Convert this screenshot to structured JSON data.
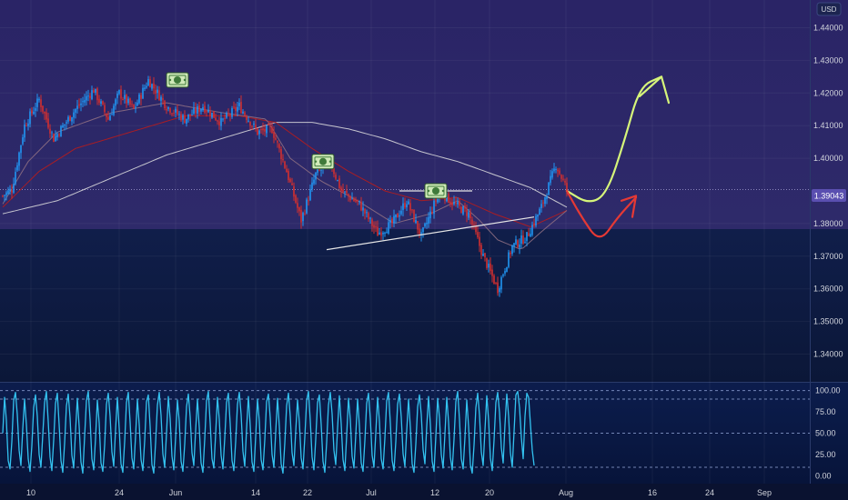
{
  "app": {
    "currency_label": "USD"
  },
  "last_price": {
    "value": 1.39043,
    "label": "1.39043"
  },
  "colors": {
    "upper_band": "#2c2763",
    "lower_band": "#0f1d47",
    "osc_band": "#0a1a44",
    "candle_up": "#2196f3",
    "candle_down": "#d32f2f",
    "ma_fast": "#8d6e82",
    "ma_mid": "#b71c1c",
    "ma_slow": "#e0e0e0",
    "oscillator": "#33c2f0",
    "forecast_up": "#d6f57a",
    "forecast_down": "#e53935",
    "trendline": "#e6e6e6",
    "axis_text": "#d1d4dc",
    "price_tag": "#5a4fb0"
  },
  "icons": [
    "dollar-bill-icon",
    "dollar-bill-icon",
    "dollar-bill-icon"
  ],
  "chart_data": [
    {
      "type": "candlestick",
      "title": "",
      "ylabel": "USD",
      "ylim": [
        1.3315,
        1.4485
      ],
      "x_ticks": [
        "10",
        "24",
        "Jun",
        "14",
        "22",
        "Jul",
        "12",
        "20",
        "Aug",
        "16",
        "24",
        "Sep"
      ],
      "y_ticks": [
        "1.44000",
        "1.43000",
        "1.42000",
        "1.41000",
        "1.40000",
        "1.38000",
        "1.37000",
        "1.36000",
        "1.35000",
        "1.34000"
      ],
      "grid": true,
      "price_segments": [
        {
          "bar": 0,
          "price": 1.3885
        },
        {
          "bar": 5,
          "price": 1.3905
        },
        {
          "bar": 12,
          "price": 1.41
        },
        {
          "bar": 20,
          "price": 1.418
        },
        {
          "bar": 28,
          "price": 1.406
        },
        {
          "bar": 40,
          "price": 1.415
        },
        {
          "bar": 50,
          "price": 1.421
        },
        {
          "bar": 58,
          "price": 1.412
        },
        {
          "bar": 64,
          "price": 1.42
        },
        {
          "bar": 72,
          "price": 1.415
        },
        {
          "bar": 80,
          "price": 1.424
        },
        {
          "bar": 90,
          "price": 1.416
        },
        {
          "bar": 100,
          "price": 1.412
        },
        {
          "bar": 110,
          "price": 1.416
        },
        {
          "bar": 120,
          "price": 1.411
        },
        {
          "bar": 130,
          "price": 1.416
        },
        {
          "bar": 140,
          "price": 1.408
        },
        {
          "bar": 148,
          "price": 1.409
        },
        {
          "bar": 156,
          "price": 1.396
        },
        {
          "bar": 164,
          "price": 1.381
        },
        {
          "bar": 172,
          "price": 1.395
        },
        {
          "bar": 180,
          "price": 1.399
        },
        {
          "bar": 186,
          "price": 1.39
        },
        {
          "bar": 196,
          "price": 1.386
        },
        {
          "bar": 206,
          "price": 1.377
        },
        {
          "bar": 214,
          "price": 1.38
        },
        {
          "bar": 222,
          "price": 1.387
        },
        {
          "bar": 230,
          "price": 1.376
        },
        {
          "bar": 240,
          "price": 1.39
        },
        {
          "bar": 248,
          "price": 1.386
        },
        {
          "bar": 256,
          "price": 1.383
        },
        {
          "bar": 264,
          "price": 1.37
        },
        {
          "bar": 272,
          "price": 1.36
        },
        {
          "bar": 280,
          "price": 1.373
        },
        {
          "bar": 288,
          "price": 1.376
        },
        {
          "bar": 296,
          "price": 1.385
        },
        {
          "bar": 304,
          "price": 1.398
        },
        {
          "bar": 310,
          "price": 1.3904
        }
      ],
      "ma_fast_anchors": [
        [
          0,
          1.386
        ],
        [
          14,
          1.399
        ],
        [
          30,
          1.408
        ],
        [
          60,
          1.414
        ],
        [
          90,
          1.417
        ],
        [
          120,
          1.414
        ],
        [
          145,
          1.412
        ],
        [
          158,
          1.4
        ],
        [
          175,
          1.393
        ],
        [
          195,
          1.387
        ],
        [
          215,
          1.38
        ],
        [
          235,
          1.383
        ],
        [
          250,
          1.387
        ],
        [
          262,
          1.381
        ],
        [
          272,
          1.375
        ],
        [
          285,
          1.372
        ],
        [
          295,
          1.377
        ],
        [
          310,
          1.384
        ]
      ],
      "ma_mid_anchors": [
        [
          0,
          1.385
        ],
        [
          20,
          1.396
        ],
        [
          40,
          1.403
        ],
        [
          70,
          1.408
        ],
        [
          100,
          1.413
        ],
        [
          130,
          1.413
        ],
        [
          150,
          1.411
        ],
        [
          170,
          1.403
        ],
        [
          190,
          1.396
        ],
        [
          210,
          1.39
        ],
        [
          230,
          1.387
        ],
        [
          250,
          1.388
        ],
        [
          270,
          1.383
        ],
        [
          290,
          1.379
        ],
        [
          310,
          1.384
        ]
      ],
      "ma_slow_anchors": [
        [
          0,
          1.383
        ],
        [
          30,
          1.387
        ],
        [
          60,
          1.394
        ],
        [
          90,
          1.401
        ],
        [
          120,
          1.406
        ],
        [
          150,
          1.411
        ],
        [
          170,
          1.411
        ],
        [
          190,
          1.409
        ],
        [
          210,
          1.406
        ],
        [
          230,
          1.402
        ],
        [
          250,
          1.399
        ],
        [
          270,
          1.395
        ],
        [
          290,
          1.391
        ],
        [
          310,
          1.385
        ]
      ],
      "trendlines": [
        {
          "from": [
            178,
            1.372
          ],
          "to": [
            292,
            1.382
          ],
          "role": "ascending support"
        },
        {
          "from": [
            218,
            1.39
          ],
          "to": [
            258,
            1.39
          ],
          "role": "horizontal resistance"
        }
      ],
      "forecast_up": [
        [
          310,
          1.39
        ],
        [
          322,
          1.386
        ],
        [
          332,
          1.389
        ],
        [
          342,
          1.406
        ],
        [
          350,
          1.422
        ],
        [
          362,
          1.425
        ]
      ],
      "forecast_up_arrowhead": [
        [
          350,
          1.419
        ],
        [
          362,
          1.425
        ],
        [
          366,
          1.417
        ]
      ],
      "forecast_down": [
        [
          310,
          1.39
        ],
        [
          318,
          1.382
        ],
        [
          328,
          1.374
        ],
        [
          338,
          1.382
        ],
        [
          348,
          1.388
        ]
      ],
      "forecast_down_arrowhead": [
        [
          340,
          1.387
        ],
        [
          348,
          1.3885
        ],
        [
          346,
          1.382
        ]
      ],
      "markers": [
        {
          "bar": 96,
          "price": 1.424,
          "icon": "dollar-bill-icon"
        },
        {
          "bar": 176,
          "price": 1.399,
          "icon": "dollar-bill-icon"
        },
        {
          "bar": 238,
          "price": 1.39,
          "icon": "dollar-bill-icon"
        }
      ]
    },
    {
      "type": "line",
      "title": "",
      "ylim": [
        -5,
        105
      ],
      "y_ticks": [
        "100.00",
        "75.00",
        "50.00",
        "25.00",
        "0.00"
      ],
      "reference_lines": [
        100,
        90,
        50,
        10
      ],
      "grid": true,
      "oscillator_values": [
        50,
        92,
        65,
        18,
        8,
        40,
        88,
        98,
        72,
        30,
        12,
        55,
        90,
        60,
        20,
        5,
        35,
        80,
        95,
        70,
        25,
        10,
        48,
        86,
        99,
        64,
        22,
        6,
        42,
        85,
        97,
        60,
        18,
        4,
        38,
        82,
        96,
        68,
        24,
        9,
        52,
        91,
        58,
        16,
        3,
        46,
        88,
        99,
        66,
        20,
        7,
        44,
        89,
        62,
        15,
        5,
        36,
        84,
        97,
        70,
        28,
        11,
        54,
        92,
        56,
        14,
        4,
        40,
        86,
        98,
        63,
        21,
        8,
        47,
        90,
        60,
        19,
        6,
        41,
        87,
        95,
        58,
        13,
        3,
        39,
        83,
        98,
        71,
        26,
        10,
        50,
        93,
        67,
        23,
        7,
        45,
        89,
        64,
        17,
        5,
        37,
        81,
        96,
        69,
        27,
        12,
        53,
        90,
        57,
        15,
        4,
        43,
        88,
        99,
        62,
        20,
        9,
        49,
        92,
        66,
        24,
        8,
        44,
        86,
        97,
        61,
        18,
        6,
        40,
        84,
        98,
        72,
        29,
        11,
        55,
        93,
        59,
        16,
        5,
        46,
        90,
        64,
        19,
        7,
        42,
        87,
        96,
        68,
        25,
        10,
        51,
        91,
        58,
        14,
        3,
        38,
        82,
        97,
        70,
        27,
        12,
        52,
        89,
        63,
        21,
        8,
        45,
        88,
        99,
        65,
        22,
        7,
        43,
        86,
        95,
        60,
        17,
        4,
        39,
        83,
        98,
        73,
        30,
        13,
        56,
        94,
        61,
        19,
        6,
        47,
        91,
        66,
        23,
        9,
        48,
        90,
        59,
        15,
        5,
        41,
        85,
        97,
        67,
        24,
        10,
        50,
        92,
        64,
        20,
        8,
        44,
        88,
        98,
        62,
        18,
        6,
        40,
        84,
        96,
        69,
        26,
        11,
        53,
        90,
        57,
        14,
        4,
        37,
        81,
        95,
        72,
        31,
        14,
        58,
        93,
        60,
        17,
        5,
        46,
        91,
        68,
        25,
        9,
        49,
        92,
        63,
        22,
        7,
        43,
        87,
        99,
        66,
        20,
        8,
        45,
        89,
        58,
        13,
        3,
        36,
        80,
        97,
        71,
        28,
        12,
        54,
        94,
        65,
        21,
        6,
        42,
        86,
        98,
        74,
        33,
        15,
        60,
        96,
        70,
        27,
        10,
        52,
        95,
        99,
        80,
        45,
        20,
        70,
        97,
        92,
        60,
        30,
        12
      ]
    }
  ]
}
